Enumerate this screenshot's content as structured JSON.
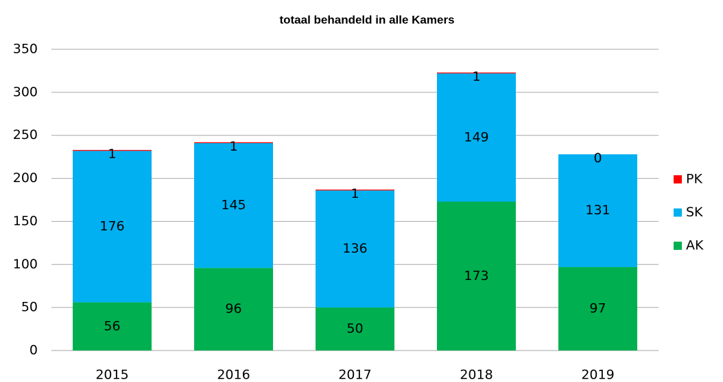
{
  "chart_data": {
    "type": "stacked_bar",
    "title": "totaal behandeld in alle Kamers",
    "categories": [
      "2015",
      "2016",
      "2017",
      "2018",
      "2019"
    ],
    "series": [
      {
        "name": "AK",
        "color": "#00b050",
        "values": [
          56,
          96,
          50,
          173,
          97
        ]
      },
      {
        "name": "SK",
        "color": "#00b0f0",
        "values": [
          176,
          145,
          136,
          149,
          131
        ]
      },
      {
        "name": "PK",
        "color": "#ff0000",
        "values": [
          1,
          1,
          1,
          1,
          0
        ]
      }
    ],
    "ylim": [
      0,
      350
    ],
    "yticks": [
      0,
      50,
      100,
      150,
      200,
      250,
      300,
      350
    ],
    "grid": true,
    "legend": "right"
  }
}
